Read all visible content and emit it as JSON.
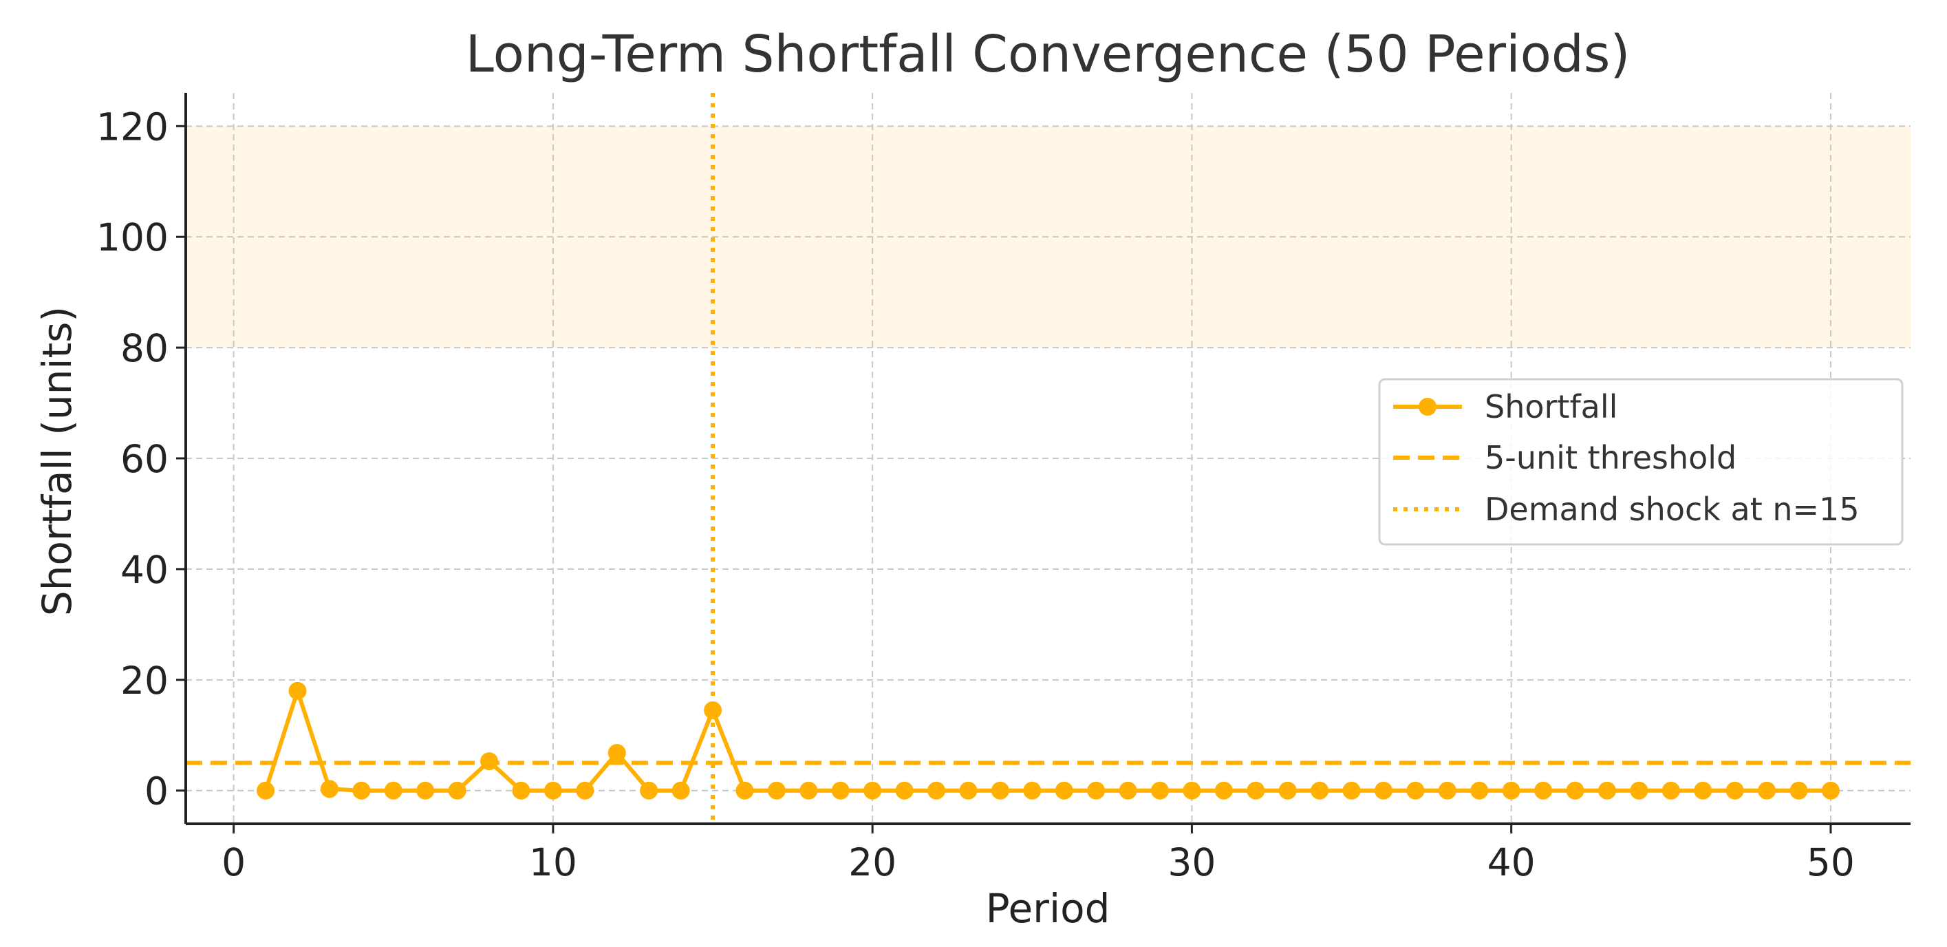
{
  "colors": {
    "series": "#FFB000",
    "reference_lines": "#FFB000",
    "band": "#FFF6E6",
    "grid": "#C8C8C8",
    "axis": "#222222"
  },
  "chart_data": {
    "type": "line",
    "title": "Long-Term Shortfall Convergence (50 Periods)",
    "xlabel": "Period",
    "ylabel": "Shortfall (units)",
    "xlim": [
      -1.5,
      52.5
    ],
    "ylim": [
      -6,
      126
    ],
    "xticks": [
      0,
      10,
      20,
      30,
      40,
      50
    ],
    "yticks": [
      0,
      20,
      40,
      60,
      80,
      100,
      120
    ],
    "grid": true,
    "legend_position": "center-right",
    "band": {
      "y_from": 80,
      "y_to": 120
    },
    "series": [
      {
        "name": "Shortfall",
        "style": "line-with-markers",
        "x": [
          1,
          2,
          3,
          4,
          5,
          6,
          7,
          8,
          9,
          10,
          11,
          12,
          13,
          14,
          15,
          16,
          17,
          18,
          19,
          20,
          21,
          22,
          23,
          24,
          25,
          26,
          27,
          28,
          29,
          30,
          31,
          32,
          33,
          34,
          35,
          36,
          37,
          38,
          39,
          40,
          41,
          42,
          43,
          44,
          45,
          46,
          47,
          48,
          49,
          50
        ],
        "y": [
          0,
          18,
          0.3,
          0,
          0,
          0,
          0,
          5.3,
          0,
          0,
          0,
          6.8,
          0,
          0,
          14.5,
          0,
          0,
          0,
          0,
          0,
          0,
          0,
          0,
          0,
          0,
          0,
          0,
          0,
          0,
          0,
          0,
          0,
          0,
          0,
          0,
          0,
          0,
          0,
          0,
          0,
          0,
          0,
          0,
          0,
          0,
          0,
          0,
          0,
          0,
          0
        ]
      }
    ],
    "reference_lines": [
      {
        "name": "5-unit threshold",
        "orientation": "horizontal",
        "value": 5,
        "style": "dashed"
      },
      {
        "name": "Demand shock at n=15",
        "orientation": "vertical",
        "value": 15,
        "style": "dotted"
      }
    ]
  }
}
